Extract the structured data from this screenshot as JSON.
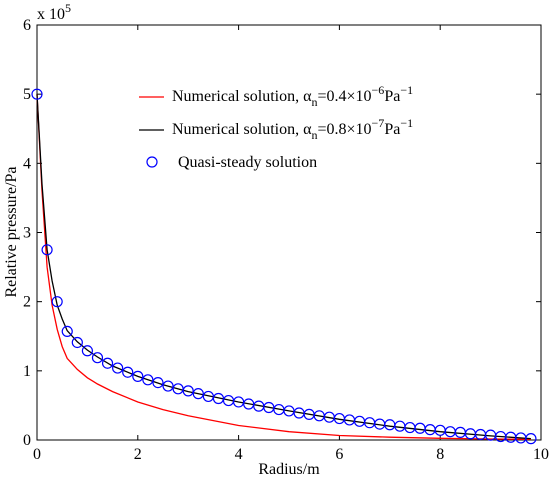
{
  "chart_data": {
    "type": "line",
    "xlabel": "Radius/m",
    "ylabel": "Relative pressure/Pa",
    "xlim": [
      0,
      10
    ],
    "ylim": [
      0,
      6
    ],
    "x_ticks": [
      "0",
      "2",
      "4",
      "6",
      "8",
      "10"
    ],
    "y_ticks": [
      "0",
      "1",
      "2",
      "3",
      "4",
      "5",
      "6"
    ],
    "y_exponent_prefix": "x 10",
    "y_exponent_power": "5",
    "y_scale_factor": 100000,
    "grid": false,
    "legend_position": "top-right",
    "legend": [
      {
        "prefix": "Numerical solution, ",
        "alpha": "α",
        "sub": "n",
        "value": "=0.4×10",
        "exp": "−6",
        "unit": "Pa",
        "unit_exp": "−1",
        "color": "#ff0000",
        "marker": "line"
      },
      {
        "prefix": "Numerical solution, ",
        "alpha": "α",
        "sub": "n",
        "value": "=0.8×10",
        "exp": "−7",
        "unit": "Pa",
        "unit_exp": "−1",
        "color": "#000000",
        "marker": "line"
      },
      {
        "label": "Quasi-steady solution",
        "color": "#0000ff",
        "marker": "circle"
      }
    ],
    "series": [
      {
        "color": "#ff0000",
        "x": [
          0,
          0.1,
          0.2,
          0.3,
          0.4,
          0.5,
          0.6,
          0.7,
          0.8,
          1.0,
          1.2,
          1.5,
          2.0,
          2.5,
          3.0,
          4.0,
          5.0,
          6.0,
          7.0,
          8.0,
          9.0,
          9.8
        ],
        "y": [
          5.0,
          3.6,
          2.5,
          1.95,
          1.6,
          1.35,
          1.18,
          1.1,
          1.02,
          0.9,
          0.81,
          0.7,
          0.55,
          0.44,
          0.35,
          0.21,
          0.12,
          0.065,
          0.04,
          0.025,
          0.015,
          0.01
        ]
      },
      {
        "color": "#000000",
        "x": [
          0,
          0.1,
          0.2,
          0.3,
          0.4,
          0.5,
          0.6,
          0.8,
          1.0,
          1.2,
          1.5,
          2.0,
          2.5,
          3.0,
          4.0,
          5.0,
          6.0,
          7.0,
          8.0,
          9.0,
          9.8
        ],
        "y": [
          5.0,
          3.7,
          2.75,
          2.3,
          1.95,
          1.75,
          1.58,
          1.42,
          1.3,
          1.2,
          1.07,
          0.92,
          0.8,
          0.7,
          0.55,
          0.42,
          0.3,
          0.2,
          0.12,
          0.06,
          0.02
        ]
      },
      {
        "color": "#0000ff",
        "marker": "circle",
        "x": [
          0,
          0.2,
          0.4,
          0.6,
          0.8,
          1.0,
          1.2,
          1.4,
          1.6,
          1.8,
          2.0,
          2.2,
          2.4,
          2.6,
          2.8,
          3.0,
          3.2,
          3.4,
          3.6,
          3.8,
          4.0,
          4.2,
          4.4,
          4.6,
          4.8,
          5.0,
          5.2,
          5.4,
          5.6,
          5.8,
          6.0,
          6.2,
          6.4,
          6.6,
          6.8,
          7.0,
          7.2,
          7.4,
          7.6,
          7.8,
          8.0,
          8.2,
          8.4,
          8.6,
          8.8,
          9.0,
          9.2,
          9.4,
          9.6,
          9.8
        ],
        "y": [
          5.0,
          2.75,
          2.0,
          1.57,
          1.41,
          1.29,
          1.19,
          1.11,
          1.04,
          0.98,
          0.92,
          0.87,
          0.83,
          0.78,
          0.74,
          0.71,
          0.67,
          0.63,
          0.6,
          0.57,
          0.55,
          0.52,
          0.49,
          0.47,
          0.44,
          0.42,
          0.39,
          0.37,
          0.35,
          0.33,
          0.31,
          0.29,
          0.27,
          0.25,
          0.23,
          0.22,
          0.2,
          0.18,
          0.17,
          0.15,
          0.14,
          0.12,
          0.11,
          0.09,
          0.08,
          0.07,
          0.05,
          0.04,
          0.03,
          0.02
        ]
      }
    ]
  }
}
